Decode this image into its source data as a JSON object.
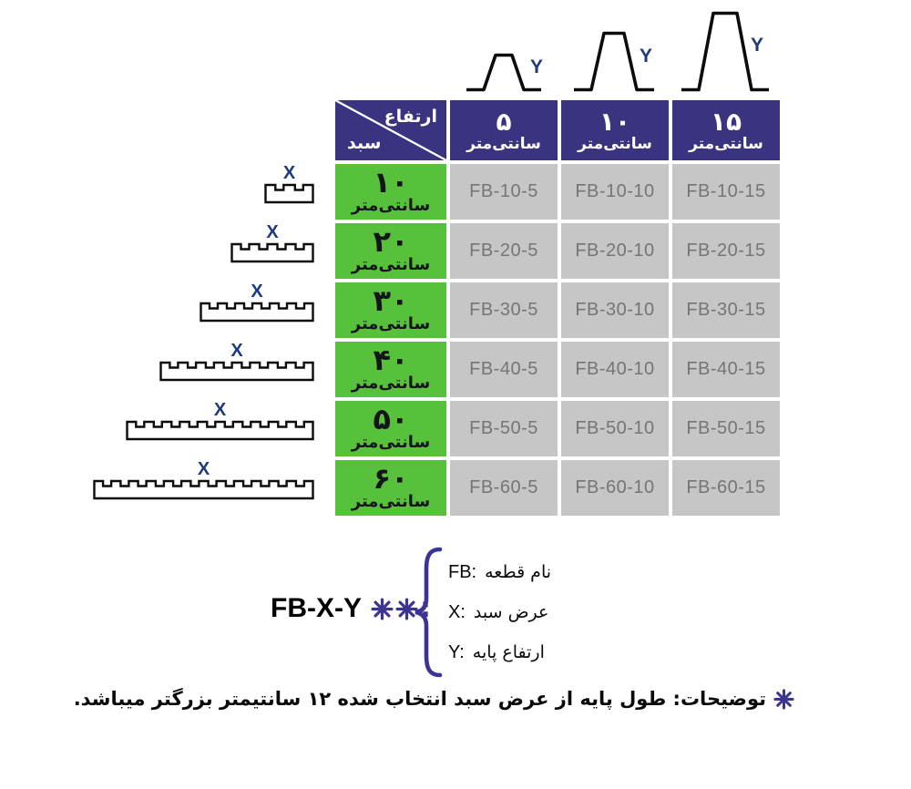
{
  "header": {
    "corner_top": "ارتفاع",
    "corner_bottom": "سبد",
    "columns": [
      {
        "num": "۵",
        "unit": "سانتی‌متر"
      },
      {
        "num": "۱۰",
        "unit": "سانتی‌متر"
      },
      {
        "num": "۱۵",
        "unit": "سانتی‌متر"
      }
    ]
  },
  "rows": [
    {
      "num": "۱۰",
      "unit": "سانتی‌متر",
      "codes": [
        "FB-10-5",
        "FB-10-10",
        "FB-10-15"
      ],
      "notches": 2
    },
    {
      "num": "۲۰",
      "unit": "سانتی‌متر",
      "codes": [
        "FB-20-5",
        "FB-20-10",
        "FB-20-15"
      ],
      "notches": 4
    },
    {
      "num": "۳۰",
      "unit": "سانتی‌متر",
      "codes": [
        "FB-30-5",
        "FB-30-10",
        "FB-30-15"
      ],
      "notches": 6
    },
    {
      "num": "۴۰",
      "unit": "سانتی‌متر",
      "codes": [
        "FB-40-5",
        "FB-40-10",
        "FB-40-15"
      ],
      "notches": 8
    },
    {
      "num": "۵۰",
      "unit": "سانتی‌متر",
      "codes": [
        "FB-50-5",
        "FB-50-10",
        "FB-50-15"
      ],
      "notches": 10
    },
    {
      "num": "۶۰",
      "unit": "سانتی‌متر",
      "codes": [
        "FB-60-5",
        "FB-60-10",
        "FB-60-15"
      ],
      "notches": 12
    }
  ],
  "diagrams": {
    "x_label": "X",
    "y_label": "Y"
  },
  "legend": {
    "code": "FB-X-Y",
    "marker_colon": ":",
    "items": [
      {
        "key": "FB:",
        "desc": "نام قطعه"
      },
      {
        "key": "X:",
        "desc": "عرض سبد"
      },
      {
        "key": "Y:",
        "desc": "ارتفاع پایه"
      }
    ]
  },
  "footnote": {
    "text": "توضیحات: طول پایه از عرض سبد انتخاب شده ۱۲ سانتیمتر بزرگتر میباشد."
  },
  "colors": {
    "header_bg": "#3a3380",
    "row_bg": "#58c13c",
    "cell_bg": "#c6c6c6",
    "code_text": "#757575",
    "navy": "#1d3a7a",
    "purple": "#3c3492"
  }
}
